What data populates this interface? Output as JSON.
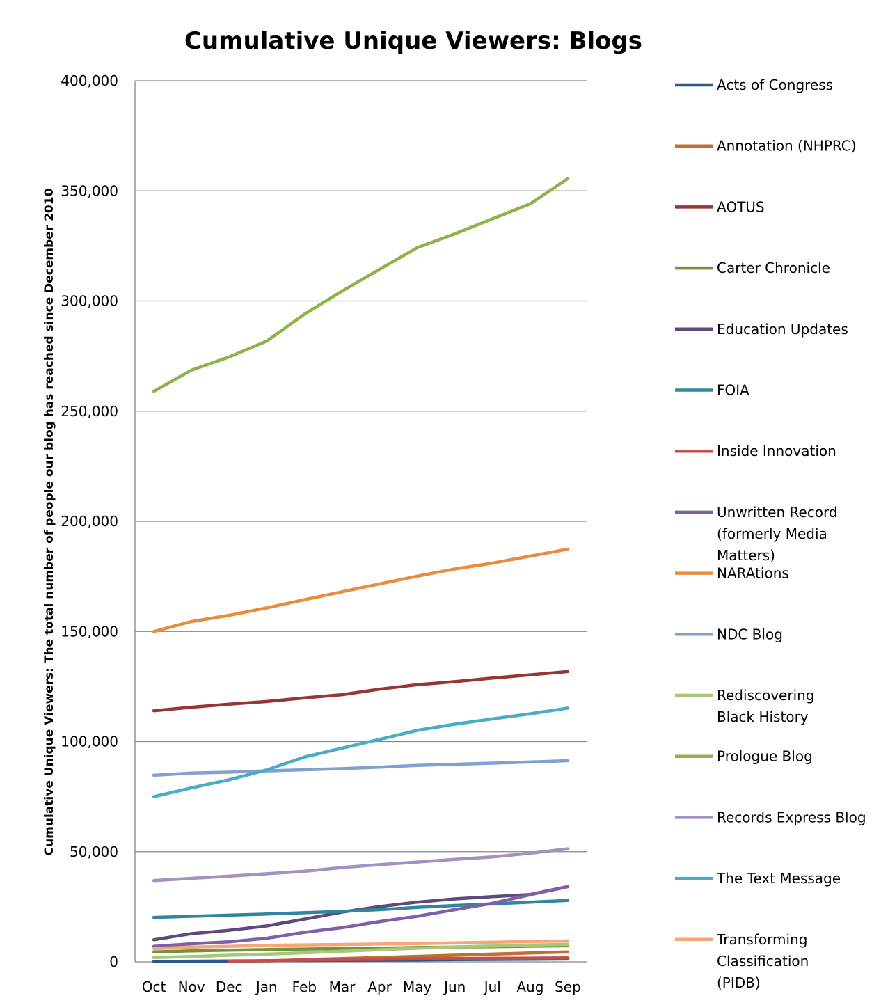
{
  "chart_data": {
    "type": "line",
    "title": "Cumulative Unique Viewers: Blogs",
    "xlabel": "",
    "ylabel": "Cumulative Unique Viewers: The total number of people our blog has reached since December 2010",
    "categories": [
      "Oct",
      "Nov",
      "Dec",
      "Jan",
      "Feb",
      "Mar",
      "Apr",
      "May",
      "Jun",
      "Jul",
      "Aug",
      "Sep"
    ],
    "ylim": [
      0,
      400000
    ],
    "yticks": [
      0,
      50000,
      100000,
      150000,
      200000,
      250000,
      300000,
      350000,
      400000
    ],
    "ytick_labels": [
      "0",
      "50,000",
      "100,000",
      "150,000",
      "200,000",
      "250,000",
      "300,000",
      "350,000",
      "400,000"
    ],
    "grid": "horizontal",
    "legend_position": "right",
    "series": [
      {
        "name": "Acts of Congress",
        "color": "#2C5A8C",
        "values": [
          200,
          300,
          400,
          500,
          600,
          700,
          800,
          900,
          1000,
          1100,
          1200,
          1300
        ]
      },
      {
        "name": "Annotation (NHPRC)",
        "color": "#C0702C",
        "values": [
          null,
          null,
          null,
          400,
          1000,
          1500,
          2000,
          2500,
          3000,
          3500,
          4000,
          4500
        ]
      },
      {
        "name": "AOTUS",
        "color": "#953735",
        "values": [
          114000,
          115600,
          117000,
          118200,
          119800,
          121300,
          123800,
          125800,
          127200,
          128800,
          130300,
          131800
        ]
      },
      {
        "name": "Carter Chronicle",
        "color": "#76923C",
        "values": [
          4500,
          5000,
          5300,
          5600,
          5800,
          6000,
          6200,
          6500,
          6700,
          6900,
          7100,
          7300
        ]
      },
      {
        "name": "Education Updates",
        "color": "#5F497A",
        "values": [
          10000,
          12800,
          14300,
          16300,
          19400,
          22600,
          25100,
          27100,
          28600,
          29600,
          30600,
          34200
        ]
      },
      {
        "name": "FOIA",
        "color": "#31859C",
        "values": [
          20200,
          20700,
          21200,
          21700,
          22300,
          22900,
          23700,
          24700,
          25600,
          26300,
          27100,
          27900
        ]
      },
      {
        "name": "Inside Innovation",
        "color": "#C0504D",
        "values": [
          null,
          null,
          200,
          500,
          800,
          1000,
          1200,
          1400,
          1500,
          1600,
          1700,
          1800
        ]
      },
      {
        "name": "Unwritten Record (formerly Media Matters)",
        "color": "#7F5FA8",
        "values": [
          7000,
          8200,
          9100,
          10700,
          13400,
          15500,
          18300,
          20700,
          23700,
          26600,
          30500,
          34100
        ]
      },
      {
        "name": "NARAtions",
        "color": "#E88D3C",
        "values": [
          150000,
          154500,
          157300,
          160700,
          164400,
          168000,
          171600,
          175100,
          178400,
          181000,
          184200,
          187400
        ]
      },
      {
        "name": "NDC Blog",
        "color": "#7FA0D0",
        "values": [
          84700,
          85700,
          86100,
          86700,
          87200,
          87700,
          88400,
          89200,
          89700,
          90200,
          90700,
          91300
        ]
      },
      {
        "name": "Rediscovering Black History",
        "color": "#A8C878",
        "values": [
          2000,
          2400,
          3000,
          3500,
          4100,
          4800,
          5500,
          6200,
          6800,
          7200,
          7600,
          8000
        ]
      },
      {
        "name": "Prologue Blog",
        "color": "#8DB34B",
        "values": [
          259000,
          268600,
          274600,
          281800,
          294000,
          304500,
          314400,
          324200,
          330500,
          337300,
          344100,
          355500
        ]
      },
      {
        "name": "Records Express Blog",
        "color": "#A391C0",
        "values": [
          36900,
          37900,
          38900,
          40000,
          41100,
          42800,
          44100,
          45300,
          46500,
          47600,
          49300,
          51300
        ]
      },
      {
        "name": "The Text Message",
        "color": "#4BACC6",
        "values": [
          75000,
          79000,
          82700,
          87100,
          93000,
          97000,
          101000,
          105100,
          107900,
          110300,
          112600,
          115200
        ]
      },
      {
        "name": "Transforming Classification (PIDB)",
        "color": "#F6A777",
        "values": [
          6000,
          6700,
          7000,
          7500,
          7700,
          7900,
          8100,
          8300,
          8600,
          8900,
          9200,
          9500
        ]
      }
    ]
  }
}
